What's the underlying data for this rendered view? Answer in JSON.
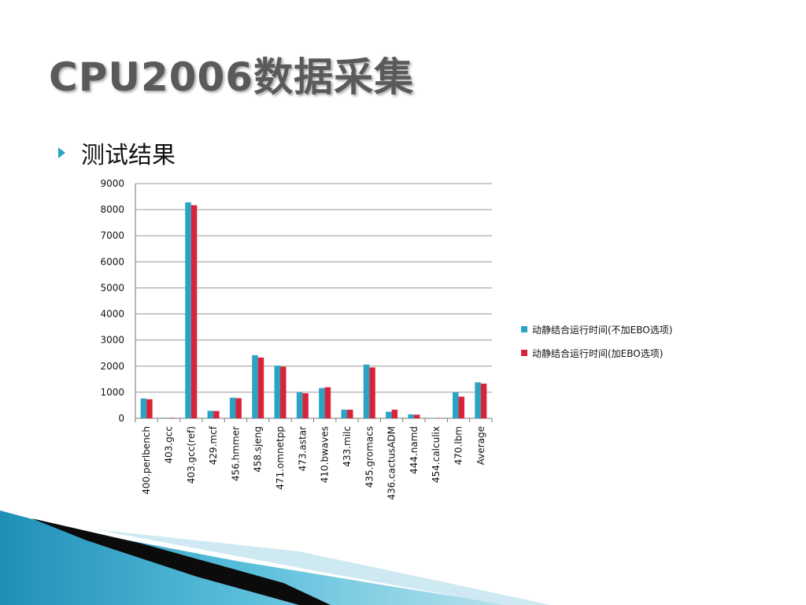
{
  "slide": {
    "title": "CPU2006数据采集",
    "bullet": "测试结果"
  },
  "colors": {
    "series1": "#2ba3c2",
    "series2": "#d8243a",
    "title": "#5a5a5a",
    "bullet": "#2aa6c4"
  },
  "chart_data": {
    "type": "bar",
    "categories": [
      "400.perlbench",
      "403.gcc",
      "403.gcc(ref)",
      "429.mcf",
      "456.hmmer",
      "458.sjeng",
      "471.omnetpp",
      "473.astar",
      "410.bwaves",
      "433.milc",
      "435.gromacs",
      "436.cactusADM",
      "444.namd",
      "454.calculix",
      "470.lbm",
      "Average"
    ],
    "series": [
      {
        "name": "动静结合运行时间(不加EBO选项)",
        "values": [
          760,
          20,
          8280,
          290,
          790,
          2420,
          2020,
          1000,
          1160,
          330,
          2060,
          250,
          150,
          10,
          1000,
          1380
        ]
      },
      {
        "name": "动静结合运行时间(加EBO选项)",
        "values": [
          730,
          20,
          8170,
          280,
          770,
          2330,
          1980,
          960,
          1190,
          330,
          1950,
          330,
          140,
          10,
          830,
          1330
        ]
      }
    ],
    "yticks": [
      "0",
      "1000",
      "2000",
      "3000",
      "4000",
      "5000",
      "6000",
      "7000",
      "8000",
      "9000"
    ],
    "ylim": [
      0,
      9000
    ],
    "grid": true,
    "legend_position": "right"
  }
}
